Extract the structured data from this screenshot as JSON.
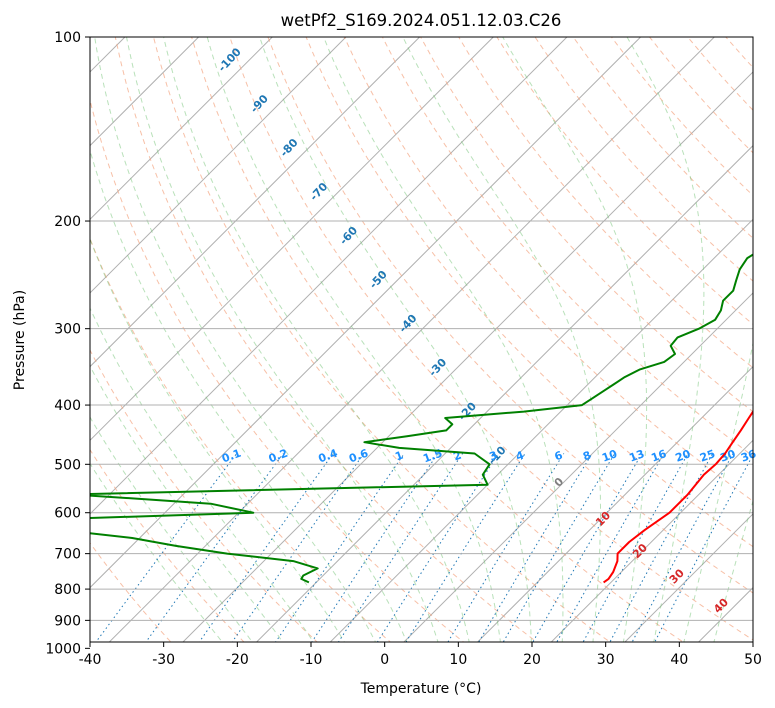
{
  "chart_data": {
    "type": "line",
    "title": "wetPf2_S169.2024.051.12.03.C26",
    "xlabel": "Temperature (°C)",
    "ylabel": "Pressure (hPa)",
    "xlim": [
      -40,
      50
    ],
    "ylim": [
      1050,
      100
    ],
    "y_scale": "log",
    "grid": true,
    "x_ticks": [
      "-40",
      "-30",
      "-20",
      "-10",
      "0",
      "10",
      "20",
      "30",
      "40",
      "50"
    ],
    "y_ticks": [
      "100",
      "200",
      "300",
      "400",
      "500",
      "600",
      "700",
      "800",
      "900",
      "1000"
    ],
    "series": [
      {
        "color": "#ff0000",
        "p": [
          780,
          770,
          750,
          720,
          700,
          670,
          640,
          600,
          560,
          520,
          500,
          480,
          460,
          440,
          420,
          400,
          380,
          360,
          340,
          320,
          300,
          280,
          260,
          240,
          220,
          200,
          185,
          170,
          160,
          150,
          140,
          130,
          120,
          110,
          100
        ],
        "t": [
          19,
          19.2,
          18.9,
          18,
          17,
          17,
          17.5,
          18.5,
          18.5,
          18,
          18.2,
          18,
          17.5,
          17,
          16.4,
          15.8,
          15,
          14.6,
          14.5,
          14.5,
          14,
          12.5,
          10.5,
          9.3,
          7.4,
          5,
          4.3,
          2.6,
          1.5,
          1.5,
          3.2,
          5,
          6.3,
          6.4,
          6.8
        ]
      },
      {
        "color": "#008000",
        "p": [
          780,
          770,
          760,
          740,
          720,
          700,
          680,
          660,
          640,
          620,
          600,
          580,
          560,
          540,
          520,
          500,
          480,
          470,
          460,
          450,
          440,
          430,
          420,
          410,
          400,
          390,
          380,
          370,
          360,
          350,
          340,
          330,
          320,
          310,
          300,
          290,
          280,
          270,
          260,
          250,
          240,
          230,
          220,
          210,
          200,
          190,
          180,
          170,
          160,
          150,
          140,
          130,
          120,
          110,
          100
        ],
        "t": [
          -21,
          -22.5,
          -22.7,
          -21.7,
          -26,
          -36,
          -44,
          -51,
          -62,
          -73,
          -38,
          -45,
          -65,
          -10,
          -12,
          -12.5,
          -16,
          -27,
          -32.5,
          -27.5,
          -23,
          -23,
          -24.8,
          -15,
          -8,
          -7.5,
          -7,
          -6.5,
          -6,
          -5,
          -2.7,
          -2.3,
          -4,
          -4.2,
          -2.5,
          -1.5,
          -2,
          -3,
          -3,
          -4,
          -5,
          -5.5,
          -4.5,
          -3.5,
          -1,
          1.5,
          2.3,
          0,
          -1.6,
          -3.5,
          -4.2,
          -4.5,
          -2.7,
          -1,
          1
        ]
      }
    ],
    "dry_adiabat_labels": [
      "-100",
      "-90",
      "-80",
      "-70",
      "-60",
      "-50",
      "-40",
      "-30",
      "-20",
      "-10"
    ],
    "mixing_ratio_labels": [
      "0.1",
      "0.2",
      "0.4",
      "0.6",
      "1",
      "1.5",
      "2",
      "3",
      "4",
      "6",
      "8",
      "10",
      "13",
      "16",
      "20",
      "25",
      "30",
      "36"
    ],
    "moist_adiabat_labels": [
      "0",
      "10",
      "20",
      "30",
      "40"
    ]
  }
}
